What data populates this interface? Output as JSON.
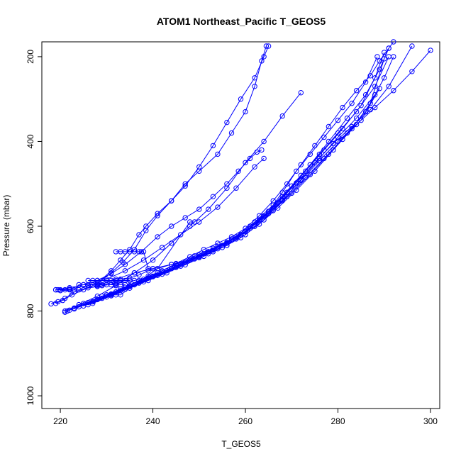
{
  "chart_data": {
    "type": "line",
    "title": "ATOM1 Northeast_Pacific T_GEOS5",
    "xlabel": "T_GEOS5",
    "ylabel": "Pressure (mbar)",
    "xlim": [
      216,
      302
    ],
    "ylim": [
      1030,
      165
    ],
    "y_reversed": true,
    "x_ticks": [
      220,
      240,
      260,
      280,
      300
    ],
    "y_ticks": [
      200,
      400,
      600,
      800,
      1000
    ],
    "grid": false,
    "legend": "none",
    "marker": "open-circle",
    "color": "#0000ff",
    "series": [
      {
        "x": [
          218,
          219.5,
          221,
          223,
          226,
          228,
          231,
          233,
          235,
          237,
          238.5,
          241,
          244,
          247,
          250,
          254,
          257,
          260,
          262,
          263.5,
          264.5
        ],
        "y": [
          783,
          778,
          770,
          755,
          745,
          735,
          705,
          680,
          655,
          620,
          600,
          570,
          540,
          500,
          470,
          430,
          380,
          330,
          270,
          210,
          175
        ]
      },
      {
        "x": [
          219,
          220.5,
          222.5,
          225,
          228,
          231,
          233.5,
          236,
          238.5,
          241,
          244,
          247,
          250,
          253,
          256,
          259,
          262,
          264,
          265
        ],
        "y": [
          782,
          775,
          762,
          750,
          735,
          710,
          685,
          655,
          610,
          575,
          540,
          505,
          460,
          410,
          355,
          300,
          250,
          200,
          175
        ]
      },
      {
        "x": [
          219,
          222,
          225,
          228,
          231,
          234,
          237.5,
          241,
          244,
          247,
          250,
          253,
          256,
          258.5,
          261,
          262.5,
          263.5
        ],
        "y": [
          750,
          745,
          738,
          728,
          712,
          690,
          660,
          625,
          600,
          580,
          560,
          530,
          500,
          470,
          440,
          425,
          420
        ]
      },
      {
        "x": [
          221,
          224,
          228,
          232,
          236,
          240,
          244,
          248,
          252,
          256,
          260,
          264,
          268,
          272
        ],
        "y": [
          800,
          785,
          765,
          740,
          710,
          680,
          640,
          600,
          560,
          510,
          450,
          400,
          340,
          285
        ]
      },
      {
        "x": [
          219.5,
          222,
          226,
          230,
          234,
          238,
          242,
          246,
          250,
          254,
          258,
          262,
          264
        ],
        "y": [
          750,
          748,
          740,
          725,
          705,
          680,
          650,
          620,
          590,
          555,
          510,
          460,
          440
        ]
      },
      {
        "x": [
          221,
          223,
          227,
          231,
          235,
          239,
          242,
          245,
          248,
          251,
          254,
          257,
          260,
          263,
          266,
          269,
          272,
          275,
          278,
          281,
          284,
          287,
          289,
          291,
          292
        ],
        "y": [
          803,
          793,
          778,
          760,
          740,
          718,
          705,
          688,
          672,
          655,
          640,
          625,
          605,
          575,
          540,
          500,
          455,
          410,
          365,
          320,
          280,
          245,
          210,
          180,
          165
        ]
      },
      {
        "x": [
          221.5,
          225,
          229,
          233,
          237,
          241,
          245,
          249,
          253,
          257,
          261,
          265,
          269,
          273,
          277,
          281,
          285,
          288,
          290
        ],
        "y": [
          800,
          782,
          765,
          748,
          728,
          710,
          690,
          670,
          652,
          630,
          600,
          565,
          520,
          470,
          420,
          370,
          315,
          250,
          190
        ]
      },
      {
        "x": [
          222,
          226,
          230,
          234,
          238,
          242,
          246,
          250,
          254,
          258,
          262,
          266,
          270,
          274,
          278,
          282,
          286,
          289,
          291
        ],
        "y": [
          798,
          780,
          762,
          744,
          725,
          708,
          688,
          668,
          648,
          625,
          590,
          550,
          505,
          455,
          400,
          345,
          290,
          230,
          180
        ]
      },
      {
        "x": [
          223,
          227,
          231,
          235,
          239,
          243,
          247,
          251,
          255,
          259,
          263,
          267,
          271,
          275,
          279,
          283,
          287,
          291,
          296
        ],
        "y": [
          795,
          778,
          760,
          742,
          722,
          705,
          685,
          665,
          645,
          620,
          585,
          545,
          498,
          450,
          405,
          365,
          325,
          270,
          175
        ]
      },
      {
        "x": [
          224,
          228,
          232,
          236,
          240,
          244,
          248,
          252,
          256,
          260,
          264,
          268,
          272,
          276,
          280,
          284,
          288,
          292,
          296,
          300
        ],
        "y": [
          790,
          773,
          755,
          738,
          719,
          700,
          680,
          660,
          638,
          612,
          578,
          538,
          492,
          445,
          400,
          360,
          320,
          280,
          235,
          185
        ]
      },
      {
        "x": [
          225,
          229,
          233,
          237,
          241,
          245,
          249,
          253,
          257,
          261,
          265,
          269,
          273,
          277,
          281,
          285,
          289
        ],
        "y": [
          788,
          770,
          752,
          734,
          716,
          697,
          677,
          656,
          633,
          605,
          570,
          530,
          485,
          440,
          395,
          350,
          275
        ]
      },
      {
        "x": [
          226,
          230,
          234,
          238,
          242,
          246,
          250,
          254,
          258,
          262,
          266,
          270,
          274,
          278,
          282,
          286,
          290,
          292
        ],
        "y": [
          785,
          767,
          749,
          731,
          713,
          694,
          674,
          653,
          630,
          600,
          563,
          522,
          478,
          430,
          380,
          330,
          250,
          200
        ]
      },
      {
        "x": [
          227,
          231,
          235,
          239,
          243,
          247,
          251,
          255,
          259,
          263,
          267,
          271,
          275,
          279,
          283,
          287,
          290
        ],
        "y": [
          782,
          764,
          746,
          728,
          710,
          691,
          671,
          650,
          627,
          595,
          557,
          515,
          470,
          420,
          370,
          310,
          205
        ]
      },
      {
        "x": [
          220,
          224,
          228,
          232,
          236,
          240,
          244,
          248,
          252,
          256,
          260,
          264,
          268,
          272,
          276,
          280,
          284,
          288,
          291
        ],
        "y": [
          752,
          750,
          742,
          735,
          728,
          718,
          700,
          680,
          660,
          640,
          612,
          575,
          530,
          480,
          430,
          380,
          330,
          270,
          200
        ]
      },
      {
        "x": [
          228,
          232,
          236,
          240,
          244,
          248,
          252,
          256,
          260,
          264,
          268,
          272,
          276,
          280,
          284,
          288
        ],
        "y": [
          740,
          725,
          710,
          700,
          690,
          680,
          665,
          645,
          620,
          585,
          540,
          490,
          440,
          390,
          345,
          290
        ]
      },
      {
        "x": [
          229,
          231.5,
          233,
          235,
          237,
          239,
          241,
          244,
          247,
          250,
          253,
          256,
          259,
          262,
          265,
          268,
          271,
          274,
          277,
          280,
          283,
          286,
          288.5
        ],
        "y": [
          740,
          730,
          725,
          722,
          715,
          705,
          700,
          690,
          685,
          672,
          660,
          645,
          620,
          600,
          565,
          520,
          470,
          430,
          390,
          350,
          310,
          260,
          200
        ]
      },
      {
        "x": [
          219,
          220,
          221,
          222,
          223,
          224,
          225,
          226,
          227,
          228,
          229,
          230,
          231,
          232,
          233,
          234
        ],
        "y": [
          750,
          750,
          750,
          750,
          750,
          738,
          738,
          738,
          738,
          738,
          738,
          738,
          738,
          738,
          738,
          738
        ]
      },
      {
        "x": [
          226,
          227,
          228,
          229,
          230,
          231,
          232,
          233,
          234,
          235
        ],
        "y": [
          728,
          728,
          728,
          728,
          728,
          728,
          728,
          728,
          728,
          728
        ]
      },
      {
        "x": [
          232,
          233,
          234,
          235,
          236,
          237,
          238,
          239,
          240
        ],
        "y": [
          660,
          660,
          660,
          660,
          660,
          660,
          660,
          700,
          700
        ]
      },
      {
        "x": [
          230,
          231,
          232,
          233,
          241,
          248,
          249
        ],
        "y": [
          762,
          762,
          762,
          762,
          700,
          590,
          590
        ]
      }
    ]
  }
}
